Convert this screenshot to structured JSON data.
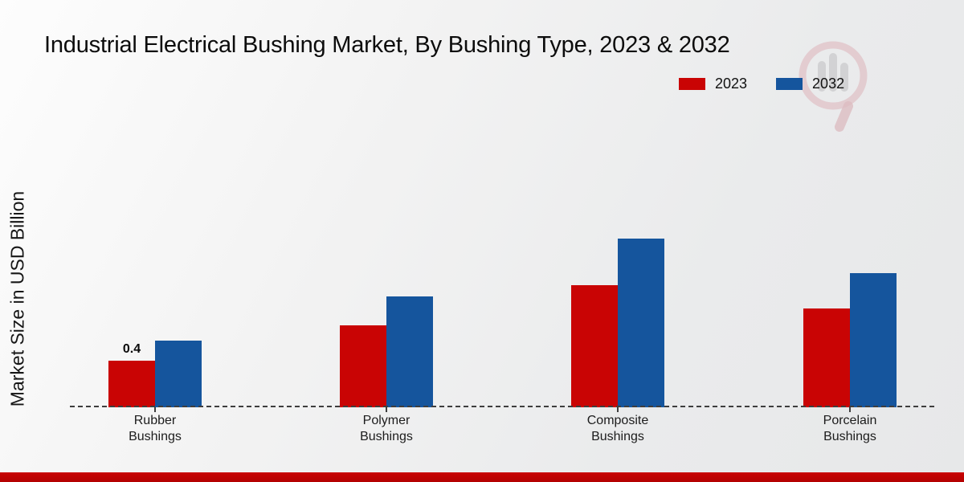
{
  "chart_data": {
    "type": "bar",
    "title": "Industrial Electrical Bushing Market, By Bushing Type, 2023 & 2032",
    "ylabel": "Market Size in USD Billion",
    "xlabel": "",
    "categories": [
      "Rubber Bushings",
      "Polymer Bushings",
      "Composite Bushings",
      "Porcelain Bushings"
    ],
    "category_lines": [
      [
        "Rubber",
        "Bushings"
      ],
      [
        "Polymer",
        "Bushings"
      ],
      [
        "Composite",
        "Bushings"
      ],
      [
        "Porcelain",
        "Bushings"
      ]
    ],
    "series": [
      {
        "name": "2023",
        "color": "#c90404",
        "values": [
          0.4,
          0.7,
          1.05,
          0.85
        ],
        "value_labels": [
          "0.4",
          "",
          "",
          ""
        ]
      },
      {
        "name": "2032",
        "color": "#15559d",
        "values": [
          0.57,
          0.95,
          1.45,
          1.15
        ],
        "value_labels": [
          "",
          "",
          "",
          ""
        ]
      }
    ],
    "ylim": [
      0,
      1.6
    ],
    "grid": false,
    "legend_position": "top-right",
    "baseline_style": "dashed",
    "units": "USD Billion"
  },
  "colors": {
    "series_2023": "#c90404",
    "series_2032": "#15559d",
    "bottom_strip": "#c00303",
    "baseline": "#3e3e3e",
    "background_light": "#fdfdfd",
    "background_dark": "#e7e8e9",
    "watermark_pink": "#dcb3b9",
    "watermark_gray": "#cccccd"
  },
  "watermark": {
    "icon": "magnifier-bar-chart-logo"
  }
}
